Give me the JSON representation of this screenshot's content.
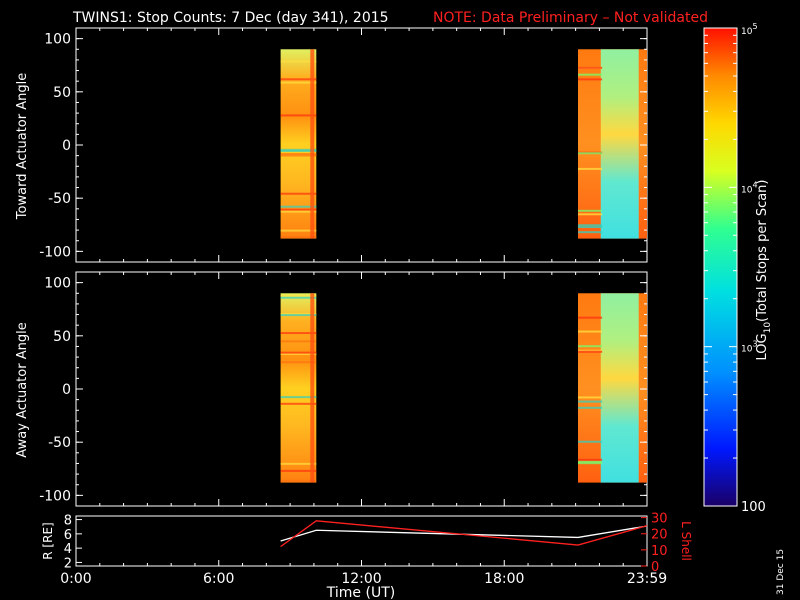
{
  "header": {
    "title": "TWINS1: Stop Counts:  7 Dec (day 341), 2015",
    "note": "NOTE: Data Preliminary – Not validated"
  },
  "stamp": "31 Dec 15",
  "colorbar": {
    "label": "LOG10(Total Stops per Scan)",
    "ticks": [
      "10^5",
      "10^4",
      "10^3",
      "100"
    ],
    "tick_values": [
      100000,
      10000,
      1000,
      100
    ]
  },
  "chart_data": [
    {
      "type": "heatmap",
      "panel": "top",
      "ylabel": "Toward Actuator Angle",
      "ylim": [
        -110,
        110
      ],
      "yticks": [
        "100",
        "50",
        "0",
        "-50",
        "-100"
      ],
      "xlim_hours": [
        0,
        24
      ],
      "color_scale": "log",
      "color_range": [
        100,
        100000
      ],
      "data_blocks": [
        {
          "start_hour": 8.6,
          "end_hour": 10.1,
          "angle_range": [
            -88,
            90
          ],
          "dominant": "orange/yellow",
          "approx_level": 30000
        },
        {
          "start_hour": 21.1,
          "end_hour": 24.0,
          "angle_range": [
            -88,
            90
          ],
          "dominant": "cyan/yellow",
          "approx_level": 8000
        }
      ]
    },
    {
      "type": "heatmap",
      "panel": "middle",
      "ylabel": "Away Actuator Angle",
      "ylim": [
        -110,
        110
      ],
      "yticks": [
        "100",
        "50",
        "0",
        "-50",
        "-100"
      ],
      "xlim_hours": [
        0,
        24
      ],
      "color_scale": "log",
      "color_range": [
        100,
        100000
      ],
      "data_blocks": [
        {
          "start_hour": 8.6,
          "end_hour": 10.1,
          "angle_range": [
            -88,
            90
          ],
          "dominant": "orange/yellow",
          "approx_level": 30000
        },
        {
          "start_hour": 21.1,
          "end_hour": 24.0,
          "angle_range": [
            -88,
            90
          ],
          "dominant": "cyan/yellow",
          "approx_level": 8000
        }
      ]
    },
    {
      "type": "line",
      "panel": "bottom",
      "xlabel": "Time (UT)",
      "xticks": [
        "0:00",
        "6:00",
        "12:00",
        "18:00",
        "23:59"
      ],
      "xlim_hours": [
        0,
        24
      ],
      "left_axis": {
        "label": "R [RE]",
        "ticks": [
          "8",
          "6",
          "4",
          "2"
        ],
        "ylim": [
          1.5,
          8.5
        ]
      },
      "right_axis": {
        "label": "L Shell",
        "ticks": [
          "30",
          "20",
          "10",
          "0"
        ],
        "ylim": [
          0,
          31
        ]
      },
      "series": [
        {
          "axis": "left",
          "color": "#ffffff",
          "points": [
            [
              8.6,
              5.0
            ],
            [
              10.1,
              6.5
            ],
            [
              21.1,
              5.5
            ],
            [
              24.0,
              7.1
            ]
          ]
        },
        {
          "axis": "right",
          "color": "#ff2020",
          "points": [
            [
              8.6,
              12.0
            ],
            [
              10.1,
              28.0
            ],
            [
              21.1,
              13.0
            ],
            [
              24.0,
              25.0
            ]
          ]
        }
      ]
    }
  ]
}
